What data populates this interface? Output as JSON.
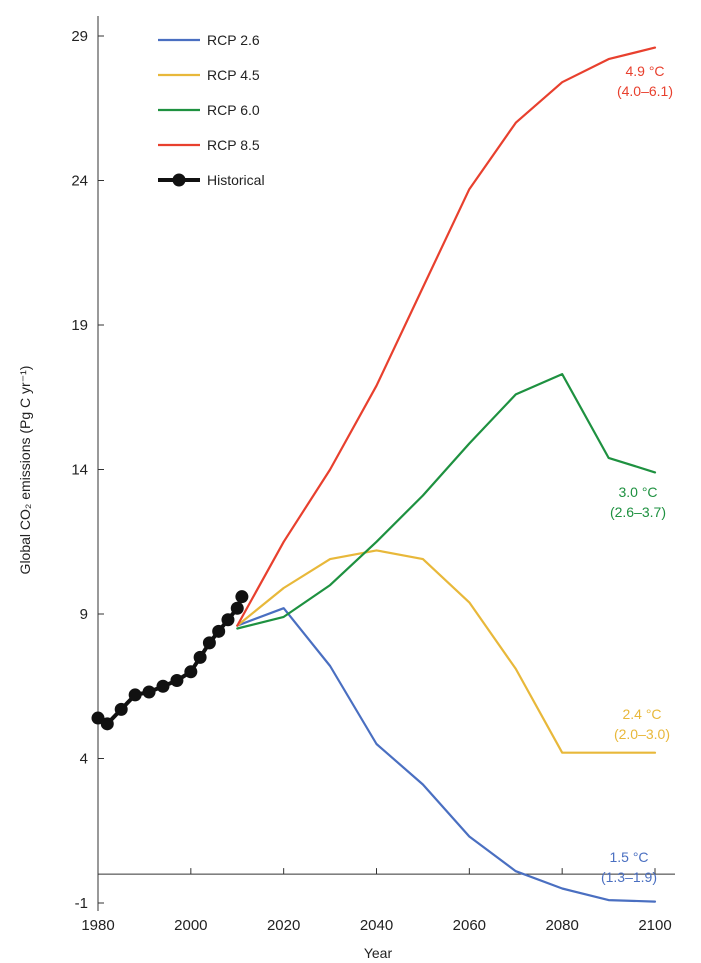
{
  "chart_data": {
    "type": "line",
    "title": "",
    "xlabel": "Year",
    "ylabel": "Global CO₂ emissions (Pg C yr⁻¹)",
    "xlim": [
      1980,
      2100
    ],
    "ylim": [
      -1,
      30
    ],
    "xticks": [
      1980,
      2000,
      2020,
      2040,
      2060,
      2080,
      2100
    ],
    "yticks": [
      -1,
      4,
      9,
      14,
      19,
      24,
      29
    ],
    "grid": false,
    "legend_position": "top-left",
    "series": [
      {
        "name": "RCP 2.6",
        "color": "#4a6fc1",
        "x": [
          2010,
          2020,
          2030,
          2040,
          2050,
          2060,
          2070,
          2080,
          2090,
          2100
        ],
        "y": [
          8.6,
          9.2,
          7.2,
          4.5,
          3.1,
          1.3,
          0.1,
          -0.5,
          -0.9,
          -0.95
        ],
        "annotation": [
          "1.5 °C",
          "(1.3–1.9)"
        ]
      },
      {
        "name": "RCP 4.5",
        "color": "#e8b83a",
        "x": [
          2010,
          2020,
          2030,
          2040,
          2050,
          2060,
          2070,
          2080,
          2090,
          2100
        ],
        "y": [
          8.6,
          9.9,
          10.9,
          11.2,
          10.9,
          9.4,
          7.1,
          4.2,
          4.2,
          4.2
        ],
        "annotation": [
          "2.4 °C",
          "(2.0–3.0)"
        ]
      },
      {
        "name": "RCP 6.0",
        "color": "#1e9140",
        "x": [
          2010,
          2020,
          2030,
          2040,
          2050,
          2060,
          2070,
          2080,
          2090,
          2100
        ],
        "y": [
          8.5,
          8.9,
          10.0,
          11.5,
          13.1,
          14.9,
          16.6,
          17.3,
          14.4,
          13.9
        ],
        "annotation": [
          "3.0 °C",
          "(2.6–3.7)"
        ]
      },
      {
        "name": "RCP 8.5",
        "color": "#e8402e",
        "x": [
          2010,
          2020,
          2030,
          2040,
          2050,
          2060,
          2070,
          2080,
          2090,
          2100
        ],
        "y": [
          8.6,
          11.5,
          14.0,
          16.9,
          20.3,
          23.7,
          26.0,
          27.4,
          28.2,
          28.6
        ],
        "annotation": [
          "4.9 °C",
          "(4.0–6.1)"
        ]
      },
      {
        "name": "Historical",
        "color": "#111111",
        "x": [
          1980,
          1982,
          1985,
          1988,
          1991,
          1994,
          1997,
          2000,
          2002,
          2004,
          2006,
          2008,
          2010,
          2011
        ],
        "y": [
          5.4,
          5.2,
          5.7,
          6.2,
          6.3,
          6.5,
          6.7,
          7.0,
          7.5,
          8.0,
          8.4,
          8.8,
          9.2,
          9.6
        ]
      }
    ]
  }
}
